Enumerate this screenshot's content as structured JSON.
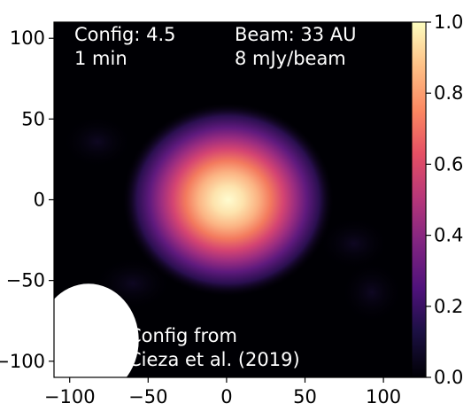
{
  "chart_data": {
    "type": "heatmap",
    "title": "",
    "xlabel": "",
    "ylabel": "",
    "xlim": [
      -110,
      118
    ],
    "ylim": [
      -110,
      110
    ],
    "xticks": [
      -100,
      -50,
      0,
      50,
      100
    ],
    "yticks": [
      -100,
      -50,
      0,
      50,
      100
    ],
    "xtick_labels": [
      "−100",
      "−50",
      "0",
      "50",
      "100"
    ],
    "ytick_labels": [
      "−100",
      "−50",
      "0",
      "50",
      "100"
    ],
    "colormap": "magma",
    "colorbar": {
      "range": [
        0.0,
        1.0
      ],
      "ticks": [
        0.0,
        0.2,
        0.4,
        0.6,
        0.8,
        1.0
      ],
      "tick_labels": [
        "0.0",
        "0.2",
        "0.4",
        "0.6",
        "0.8",
        "1.0"
      ]
    },
    "source": {
      "center": [
        1,
        0
      ],
      "peak": 1.0,
      "description_fwhm_au": 55
    },
    "beam": {
      "center": [
        -88,
        -87
      ],
      "width": 32,
      "height": 35
    },
    "annotations": {
      "config_line1": "Config: 4.5",
      "config_line2": "1 min",
      "beam_line1": "Beam: 33 AU",
      "beam_line2": "8 mJy/beam",
      "ref_line1": "Config from",
      "ref_line2": "Cieza et al. (2019)"
    }
  }
}
